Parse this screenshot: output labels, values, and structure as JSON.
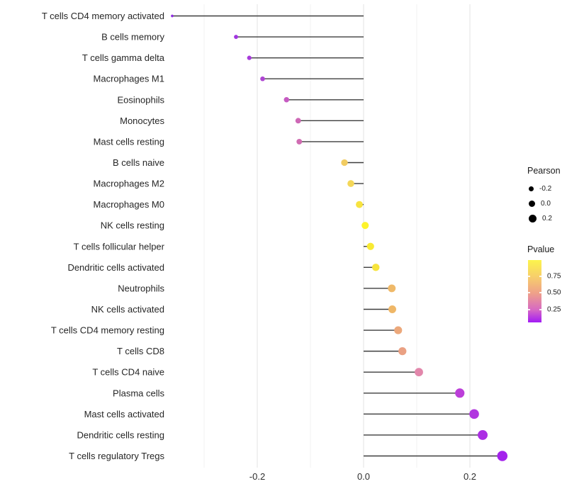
{
  "chart_data": {
    "type": "lollipop",
    "title": "",
    "xlabel": "",
    "ylabel": "",
    "x_tick_labels": [
      "-0.2",
      "0.0",
      "0.2"
    ],
    "x_ticks": [
      -0.2,
      0.0,
      0.2
    ],
    "gridlines_major": [
      -0.2,
      0.0,
      0.2
    ],
    "gridlines_minor": [
      -0.3,
      -0.1,
      0.1
    ],
    "xlim": [
      -0.39,
      0.29
    ],
    "baseline": 0.0,
    "legend_position": "right",
    "grid": true,
    "categories": [
      "T cells CD4 memory activated",
      "B cells memory",
      "T cells gamma delta",
      "Macrophages M1",
      "Eosinophils",
      "Monocytes",
      "Mast cells resting",
      "B cells naive",
      "Macrophages M2",
      "Macrophages M0",
      "NK cells resting",
      "T cells follicular helper",
      "Dendritic cells activated",
      "Neutrophils",
      "NK cells activated",
      "T cells CD4 memory resting",
      "T cells CD8",
      "T cells CD4 naive",
      "Plasma cells",
      "Mast cells activated",
      "Dendritic cells resting",
      "T cells regulatory  Tregs"
    ],
    "series": [
      {
        "name": "Pearson",
        "values": [
          -0.36,
          -0.24,
          -0.215,
          -0.19,
          -0.145,
          -0.123,
          -0.121,
          -0.036,
          -0.024,
          -0.008,
          0.003,
          0.013,
          0.023,
          0.053,
          0.054,
          0.065,
          0.073,
          0.104,
          0.181,
          0.208,
          0.224,
          0.261
        ]
      },
      {
        "name": "Pvalue_estimated_from_color",
        "values": [
          0.02,
          0.05,
          0.07,
          0.1,
          0.18,
          0.22,
          0.23,
          0.78,
          0.83,
          0.9,
          0.98,
          0.94,
          0.91,
          0.65,
          0.64,
          0.57,
          0.53,
          0.38,
          0.12,
          0.09,
          0.07,
          0.04
        ]
      }
    ],
    "point_colors": [
      "#8F2BE2",
      "#A135E0",
      "#A73BDB",
      "#AE46D2",
      "#C65AC2",
      "#CE68B6",
      "#D06CB2",
      "#F1CC62",
      "#F4D758",
      "#F7E340",
      "#FDF32B",
      "#F8EA33",
      "#F7E43C",
      "#EFB969",
      "#EFB767",
      "#ECA87B",
      "#EAA183",
      "#E287AB",
      "#BC3FD9",
      "#B136DF",
      "#AC2EE4",
      "#A423EC"
    ]
  },
  "legend": {
    "pearson": {
      "title": "Pearson",
      "items": [
        {
          "label": "-0.2",
          "size": 7
        },
        {
          "label": "0.0",
          "size": 9
        },
        {
          "label": "0.2",
          "size": 11
        }
      ]
    },
    "pvalue": {
      "title": "Pvalue",
      "tick_labels": [
        "0.75",
        "0.50",
        "0.25"
      ],
      "tick_offsets": [
        23,
        46,
        70
      ],
      "gradient": [
        "#FCF44C",
        "#F7CE6B",
        "#EFA189",
        "#D668C4",
        "#A21BF5"
      ],
      "gradient_stops": [
        0,
        27,
        53,
        80,
        100
      ]
    }
  },
  "style": {
    "stem_color": "#3d3d3d",
    "grid_major_color": "#e3e3e3",
    "grid_minor_color": "#f1f1f1",
    "axis_text_color": "#2e2e2e",
    "category_text_color": "#262626",
    "legend_dot_color": "#000000",
    "background": "#ffffff"
  }
}
